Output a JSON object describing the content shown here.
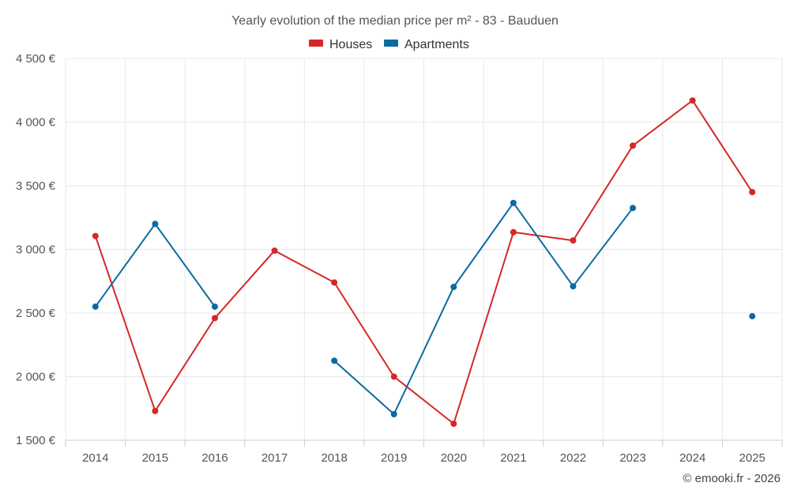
{
  "chart_data": {
    "type": "line",
    "title": "Yearly evolution of the median price per m² - 83 - Bauduen",
    "xlabel": "",
    "ylabel": "",
    "categories": [
      "2014",
      "2015",
      "2016",
      "2017",
      "2018",
      "2019",
      "2020",
      "2021",
      "2022",
      "2023",
      "2024",
      "2025"
    ],
    "ylim": [
      1500,
      4500
    ],
    "yticks": [
      1500,
      2000,
      2500,
      3000,
      3500,
      4000,
      4500
    ],
    "ytick_labels": [
      "1 500 €",
      "2 000 €",
      "2 500 €",
      "3 000 €",
      "3 500 €",
      "4 000 €",
      "4 500 €"
    ],
    "grid": true,
    "legend_position": "top-center",
    "series": [
      {
        "name": "Houses",
        "color": "#d62728",
        "values": [
          3105,
          1730,
          2460,
          2990,
          2740,
          2000,
          1630,
          3135,
          3070,
          3815,
          4170,
          3450
        ]
      },
      {
        "name": "Apartments",
        "color": "#0b6aa2",
        "values": [
          2550,
          3200,
          2550,
          null,
          2125,
          1705,
          2705,
          3365,
          2710,
          3325,
          null,
          2475
        ]
      }
    ]
  },
  "credit": "© emooki.fr - 2026"
}
